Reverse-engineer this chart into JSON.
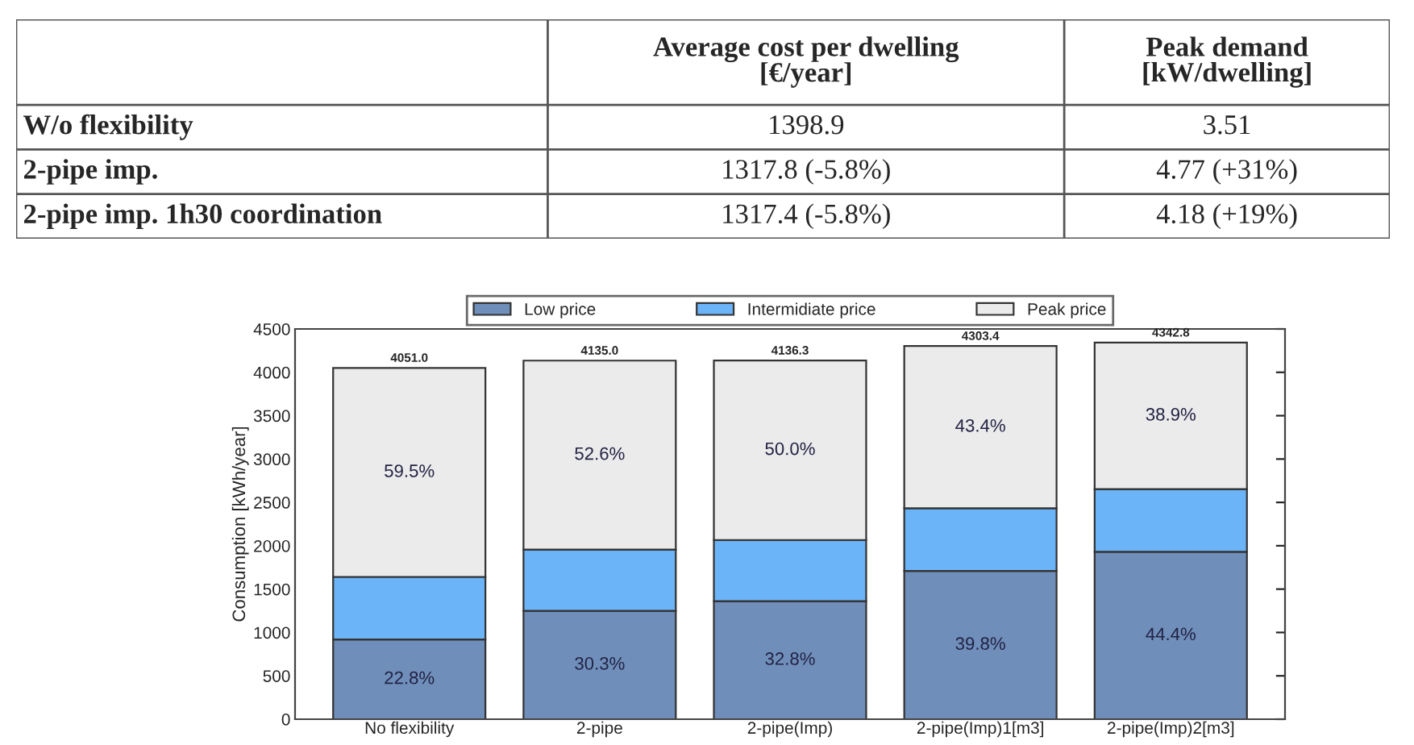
{
  "chart_data": [
    {
      "type": "other",
      "categories": [
        null,
        "Average cost per dwelling\n[€/year]",
        "Peak demand\n[kW/dwelling]"
      ],
      "y_categories": [
        "W/o flexibility",
        "2-pipe imp.",
        "2-pipe imp. 1h30 coordination"
      ],
      "cell_labels": [
        [
          "1398.9",
          "3.51"
        ],
        [
          "1317.8 (-5.8%)",
          "4.77 (+31%)"
        ],
        [
          "1317.4 (-5.8%)",
          "4.18 (+19%)"
        ]
      ]
    },
    {
      "type": "bar",
      "stacked": true,
      "ylabel": "Consumption [kWh/year]",
      "categories": [
        "No flexibility",
        "2-pipe",
        "2-pipe(Imp)",
        "2-pipe(Imp)1[m3]",
        "2-pipe(Imp)2[m3]"
      ],
      "series": [
        {
          "name": "Low price",
          "color": "#6f8fba",
          "values": [
            920,
            1250,
            1360,
            1710,
            1930
          ]
        },
        {
          "name": "Intermidiate price",
          "color": "#6cb4f8",
          "values": [
            721.0,
            705.0,
            706.3,
            723.4,
            722.8
          ]
        },
        {
          "name": "Peak price",
          "color": "#ebebeb",
          "values": [
            2410,
            2180,
            2070,
            1870,
            1690
          ]
        }
      ],
      "annotations": [
        "22.8%",
        "30.3%",
        "32.8%",
        "39.8%",
        "44.4%",
        "59.5%",
        "52.6%",
        "50.0%",
        "43.4%",
        "38.9%"
      ],
      "totals": [
        "4051.0",
        "4135.0",
        "4136.3",
        "4303.4",
        "4342.8"
      ],
      "ylim": [
        0,
        4500
      ],
      "yticks": [
        0,
        500,
        1000,
        1500,
        2000,
        2500,
        3000,
        3500,
        4000,
        4500
      ],
      "legend": "top",
      "grid": false
    }
  ]
}
